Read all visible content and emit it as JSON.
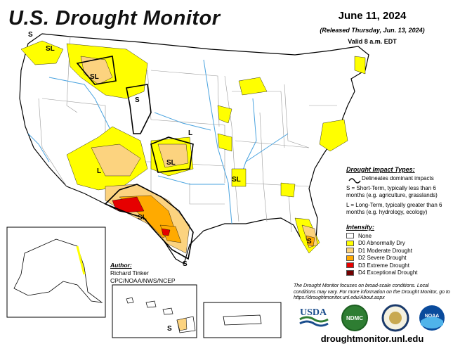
{
  "header": {
    "title": "U.S. Drought Monitor",
    "date": "June 11, 2024",
    "released": "(Released Thursday, Jun. 13, 2024)",
    "valid": "Valid 8 a.m. EDT"
  },
  "impact": {
    "title": "Drought Impact Types:",
    "delineates": "Delineates dominant impacts",
    "short_term": "S = Short-Term, typically less than 6 months (e.g. agriculture, grasslands)",
    "long_term": "L = Long-Term, typically greater than 6 months (e.g. hydrology, ecology)"
  },
  "legend": {
    "title": "Intensity:",
    "items": [
      {
        "label": "None",
        "color": "#ffffff"
      },
      {
        "label": "D0 Abnormally Dry",
        "color": "#ffff00"
      },
      {
        "label": "D1 Moderate Drought",
        "color": "#fcd37f"
      },
      {
        "label": "D2 Severe Drought",
        "color": "#ffaa00"
      },
      {
        "label": "D3 Extreme Drought",
        "color": "#e60000"
      },
      {
        "label": "D4 Exceptional Drought",
        "color": "#730000"
      }
    ]
  },
  "author": {
    "title": "Author:",
    "name": "Richard Tinker",
    "org": "CPC/NOAA/NWS/NCEP"
  },
  "note": "The Drought Monitor focuses on broad-scale conditions. Local conditions may vary. For more information on the Drought Monitor, go to https://droughtmonitor.unl.edu/About.aspx",
  "url": "droughtmonitor.unl.edu",
  "map_labels": {
    "s": "S",
    "sl": "SL",
    "l": "L"
  },
  "logos": {
    "usda": "USDA",
    "ndmc": "NDMC",
    "noaa": "NOAA"
  },
  "colors": {
    "water": "#4aa3df",
    "outline": "#000000",
    "states": "#9a9a9a"
  }
}
